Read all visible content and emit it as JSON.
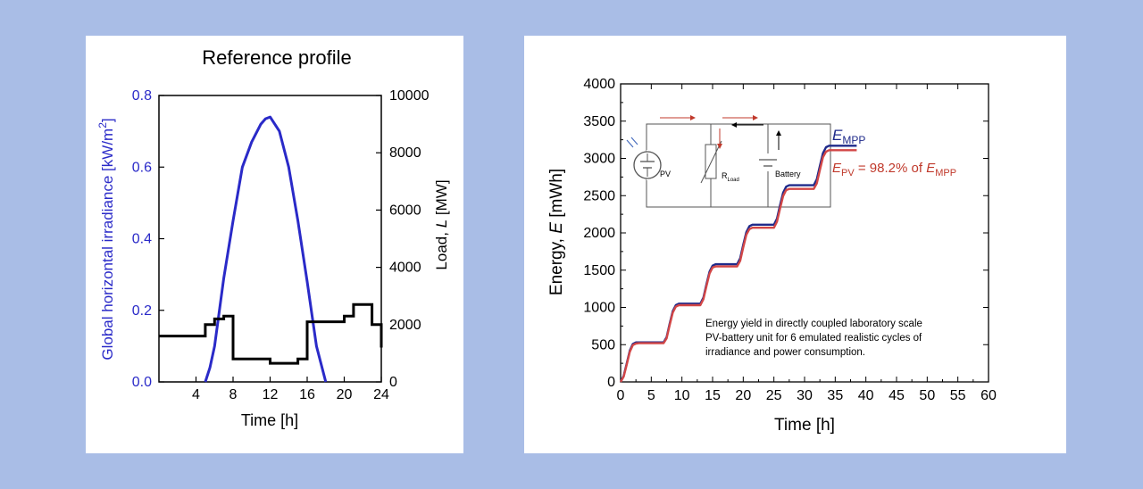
{
  "chart_data": [
    {
      "type": "line",
      "title": "Reference profile",
      "xlabel": "Time [h]",
      "ylabel": "Global horizontal irradiance [kW/m",
      "ylabel_sup": "2",
      "ylabel_end": "]",
      "y2label_prefix": "Load, ",
      "y2label_var": "L",
      "y2label_unit": " [MW]",
      "xlim": [
        0,
        24
      ],
      "ylim": [
        0,
        0.8
      ],
      "y2lim": [
        0,
        10000
      ],
      "x_ticks": [
        "4",
        "8",
        "12",
        "16",
        "20",
        "24"
      ],
      "y_ticks": [
        "0.0",
        "0.2",
        "0.4",
        "0.6",
        "0.8"
      ],
      "y2_ticks": [
        "0",
        "2000",
        "4000",
        "6000",
        "8000",
        "10000"
      ],
      "colors": {
        "irradiance": "#2a2ac8",
        "load": "#000000"
      },
      "series": [
        {
          "axis": "left",
          "x": [
            5,
            5.5,
            6,
            7,
            8,
            9,
            10,
            11,
            11.5,
            12,
            13,
            14,
            15,
            16,
            17,
            18
          ],
          "values": [
            0,
            0.04,
            0.1,
            0.29,
            0.45,
            0.6,
            0.67,
            0.72,
            0.735,
            0.74,
            0.7,
            0.6,
            0.45,
            0.28,
            0.1,
            0
          ]
        },
        {
          "axis": "right",
          "step": true,
          "x": [
            0,
            4,
            5,
            6,
            7,
            8,
            9,
            10,
            11,
            12,
            13,
            14,
            15,
            16,
            17,
            18,
            19,
            20,
            21,
            22,
            23,
            24
          ],
          "values": [
            1600,
            1600,
            2000,
            2200,
            2300,
            800,
            800,
            800,
            800,
            650,
            650,
            650,
            800,
            2100,
            2100,
            2100,
            2100,
            2300,
            2700,
            2700,
            2000,
            1200
          ]
        }
      ]
    },
    {
      "type": "line",
      "xlabel": "Time [h]",
      "ylabel_prefix": "Energy, ",
      "ylabel_var": "E",
      "ylabel_unit": " [mWh]",
      "xlim": [
        0,
        60
      ],
      "ylim": [
        0,
        4000
      ],
      "x_ticks": [
        "0",
        "5",
        "10",
        "15",
        "20",
        "25",
        "30",
        "35",
        "40",
        "45",
        "50",
        "55",
        "60"
      ],
      "y_ticks": [
        "0",
        "500",
        "1000",
        "1500",
        "2000",
        "2500",
        "3000",
        "3500",
        "4000"
      ],
      "colors": {
        "mpp": "#1f2a8a",
        "pv": "#d24646"
      },
      "series": [
        {
          "name": "MPP",
          "x": [
            0,
            0.5,
            1.0,
            1.5,
            2.0,
            2.5,
            3.0,
            7.0,
            7.5,
            8.0,
            8.5,
            9.0,
            9.5,
            10.0,
            13.0,
            13.5,
            14.0,
            14.5,
            15.0,
            15.5,
            16.0,
            19.0,
            19.5,
            20.0,
            20.5,
            21.0,
            21.5,
            22.0,
            25.0,
            25.5,
            26.0,
            26.5,
            27.0,
            27.5,
            28.0,
            31.5,
            32.0,
            32.5,
            33.0,
            33.5,
            34.0,
            34.5,
            38.5
          ],
          "values": [
            0,
            80,
            250,
            420,
            510,
            530,
            530,
            530,
            600,
            780,
            950,
            1030,
            1050,
            1050,
            1050,
            1130,
            1310,
            1480,
            1560,
            1580,
            1580,
            1580,
            1660,
            1840,
            2010,
            2090,
            2110,
            2110,
            2110,
            2190,
            2370,
            2540,
            2620,
            2640,
            2640,
            2640,
            2720,
            2900,
            3070,
            3150,
            3170,
            3170,
            3170
          ]
        },
        {
          "name": "PV",
          "x": [
            0,
            0.5,
            1.0,
            1.5,
            2.0,
            2.5,
            3.0,
            7.0,
            7.5,
            8.0,
            8.5,
            9.0,
            9.5,
            10.0,
            13.0,
            13.5,
            14.0,
            14.5,
            15.0,
            15.5,
            16.0,
            19.0,
            19.5,
            20.0,
            20.5,
            21.0,
            21.5,
            22.0,
            25.0,
            25.5,
            26.0,
            26.5,
            27.0,
            27.5,
            28.0,
            31.5,
            32.0,
            32.5,
            33.0,
            33.5,
            34.0,
            34.5,
            38.5
          ],
          "values": [
            0,
            70,
            235,
            405,
            495,
            515,
            520,
            520,
            585,
            760,
            930,
            1010,
            1030,
            1030,
            1030,
            1110,
            1285,
            1455,
            1535,
            1550,
            1550,
            1550,
            1625,
            1805,
            1975,
            2050,
            2070,
            2070,
            2070,
            2150,
            2325,
            2495,
            2575,
            2590,
            2590,
            2590,
            2665,
            2845,
            3015,
            3090,
            3110,
            3110,
            3110
          ]
        }
      ],
      "annotations": {
        "e_mpp_main": "E",
        "e_mpp_sub": "MPP",
        "e_pv_main": "E",
        "e_pv_sub": "PV",
        "e_pv_mid": " = 98.2% of ",
        "e_pv_ref_main": "E",
        "e_pv_ref_sub": "MPP",
        "note": [
          "Energy yield in directly coupled laboratory scale",
          "PV-battery unit for 6 emulated realistic cycles of",
          "irradiance and power consumption."
        ],
        "circuit": {
          "pv": "PV",
          "rload_main": "R",
          "rload_sub": "Load",
          "battery": "Battery"
        }
      }
    }
  ]
}
